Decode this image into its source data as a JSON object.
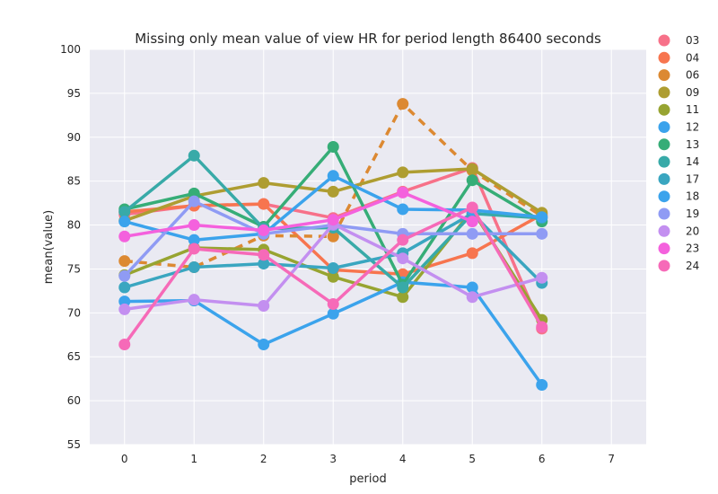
{
  "chart_data": {
    "type": "line",
    "title": "Missing only mean value of view HR for period length 86400 seconds",
    "xlabel": "period",
    "ylabel": "mean(value)",
    "xlim": [
      -0.5,
      7.5
    ],
    "ylim": [
      55,
      100
    ],
    "x_ticks": [
      0,
      1,
      2,
      3,
      4,
      5,
      6,
      7
    ],
    "y_ticks": [
      55,
      60,
      65,
      70,
      75,
      80,
      85,
      90,
      95,
      100
    ],
    "grid": true,
    "legend_position": "right",
    "series": [
      {
        "name": "03",
        "color": "#f77189",
        "dashed": false,
        "x": [
          0,
          1,
          2,
          3,
          4,
          5,
          6
        ],
        "values": [
          81.2,
          82.2,
          82.4,
          80.8,
          83.8,
          86.5,
          68.2
        ]
      },
      {
        "name": "04",
        "color": "#f7754f",
        "dashed": false,
        "x": [
          0,
          1,
          2,
          3,
          4,
          5,
          6
        ],
        "values": [
          81.5,
          82.2,
          82.4,
          74.9,
          74.4,
          76.8,
          81.2
        ]
      },
      {
        "name": "06",
        "color": "#dc8932",
        "dashed": true,
        "x": [
          0,
          1,
          2,
          3,
          4,
          5,
          6
        ],
        "values": [
          75.9,
          75.2,
          78.8,
          78.7,
          93.8,
          86.2,
          81.0
        ]
      },
      {
        "name": "09",
        "color": "#ae9d31",
        "dashed": false,
        "x": [
          0,
          1,
          2,
          3,
          4,
          5,
          6
        ],
        "values": [
          80.5,
          83.3,
          84.8,
          83.8,
          86.0,
          86.4,
          81.4
        ]
      },
      {
        "name": "11",
        "color": "#97a431",
        "dashed": false,
        "x": [
          0,
          1,
          2,
          3,
          4,
          5,
          6
        ],
        "values": [
          74.3,
          77.4,
          77.2,
          74.1,
          71.8,
          81.7,
          69.2
        ]
      },
      {
        "name": "12",
        "color": "#3ba3ec",
        "dashed": false,
        "x": [
          0,
          1,
          2,
          3,
          4,
          5,
          6
        ],
        "values": [
          71.3,
          71.4,
          66.4,
          69.9,
          73.5,
          72.9,
          61.8
        ]
      },
      {
        "name": "13",
        "color": "#36ad77",
        "dashed": false,
        "x": [
          0,
          1,
          2,
          3,
          4,
          5,
          6
        ],
        "values": [
          81.8,
          83.6,
          79.8,
          88.9,
          73.2,
          85.1,
          80.4
        ]
      },
      {
        "name": "14",
        "color": "#38aaa8",
        "dashed": false,
        "x": [
          0,
          1,
          2,
          3,
          4,
          5,
          6
        ],
        "values": [
          81.5,
          87.9,
          79.6,
          79.7,
          72.9,
          81.3,
          80.8
        ]
      },
      {
        "name": "17",
        "color": "#3aa6c0",
        "dashed": false,
        "x": [
          0,
          1,
          2,
          3,
          4,
          5,
          6
        ],
        "values": [
          72.9,
          75.2,
          75.6,
          75.1,
          76.8,
          81.3,
          73.4
        ]
      },
      {
        "name": "18",
        "color": "#3ba3ec",
        "dashed": false,
        "x": [
          0,
          1,
          2,
          3,
          4,
          5,
          6
        ],
        "values": [
          80.4,
          78.3,
          79.0,
          85.6,
          81.8,
          81.7,
          80.9
        ]
      },
      {
        "name": "19",
        "color": "#8f9bf4",
        "dashed": false,
        "x": [
          0,
          1,
          2,
          3,
          4,
          5,
          6
        ],
        "values": [
          74.2,
          82.7,
          79.0,
          80.0,
          79.0,
          79.0,
          79.0
        ]
      },
      {
        "name": "20",
        "color": "#c38ff0",
        "dashed": false,
        "x": [
          0,
          1,
          2,
          3,
          4,
          5,
          6
        ],
        "values": [
          70.4,
          71.5,
          70.8,
          80.1,
          76.2,
          71.8,
          74.0
        ]
      },
      {
        "name": "23",
        "color": "#f461dd",
        "dashed": false,
        "x": [
          0,
          1,
          2,
          3,
          4,
          5,
          6
        ],
        "values": [
          78.7,
          80.0,
          79.4,
          80.6,
          83.7,
          80.4,
          null
        ]
      },
      {
        "name": "24",
        "color": "#f66ab8",
        "dashed": false,
        "x": [
          0,
          1,
          2,
          3,
          4,
          5,
          6
        ],
        "values": [
          66.4,
          77.3,
          76.6,
          71.0,
          78.3,
          82.0,
          68.4
        ]
      }
    ]
  }
}
